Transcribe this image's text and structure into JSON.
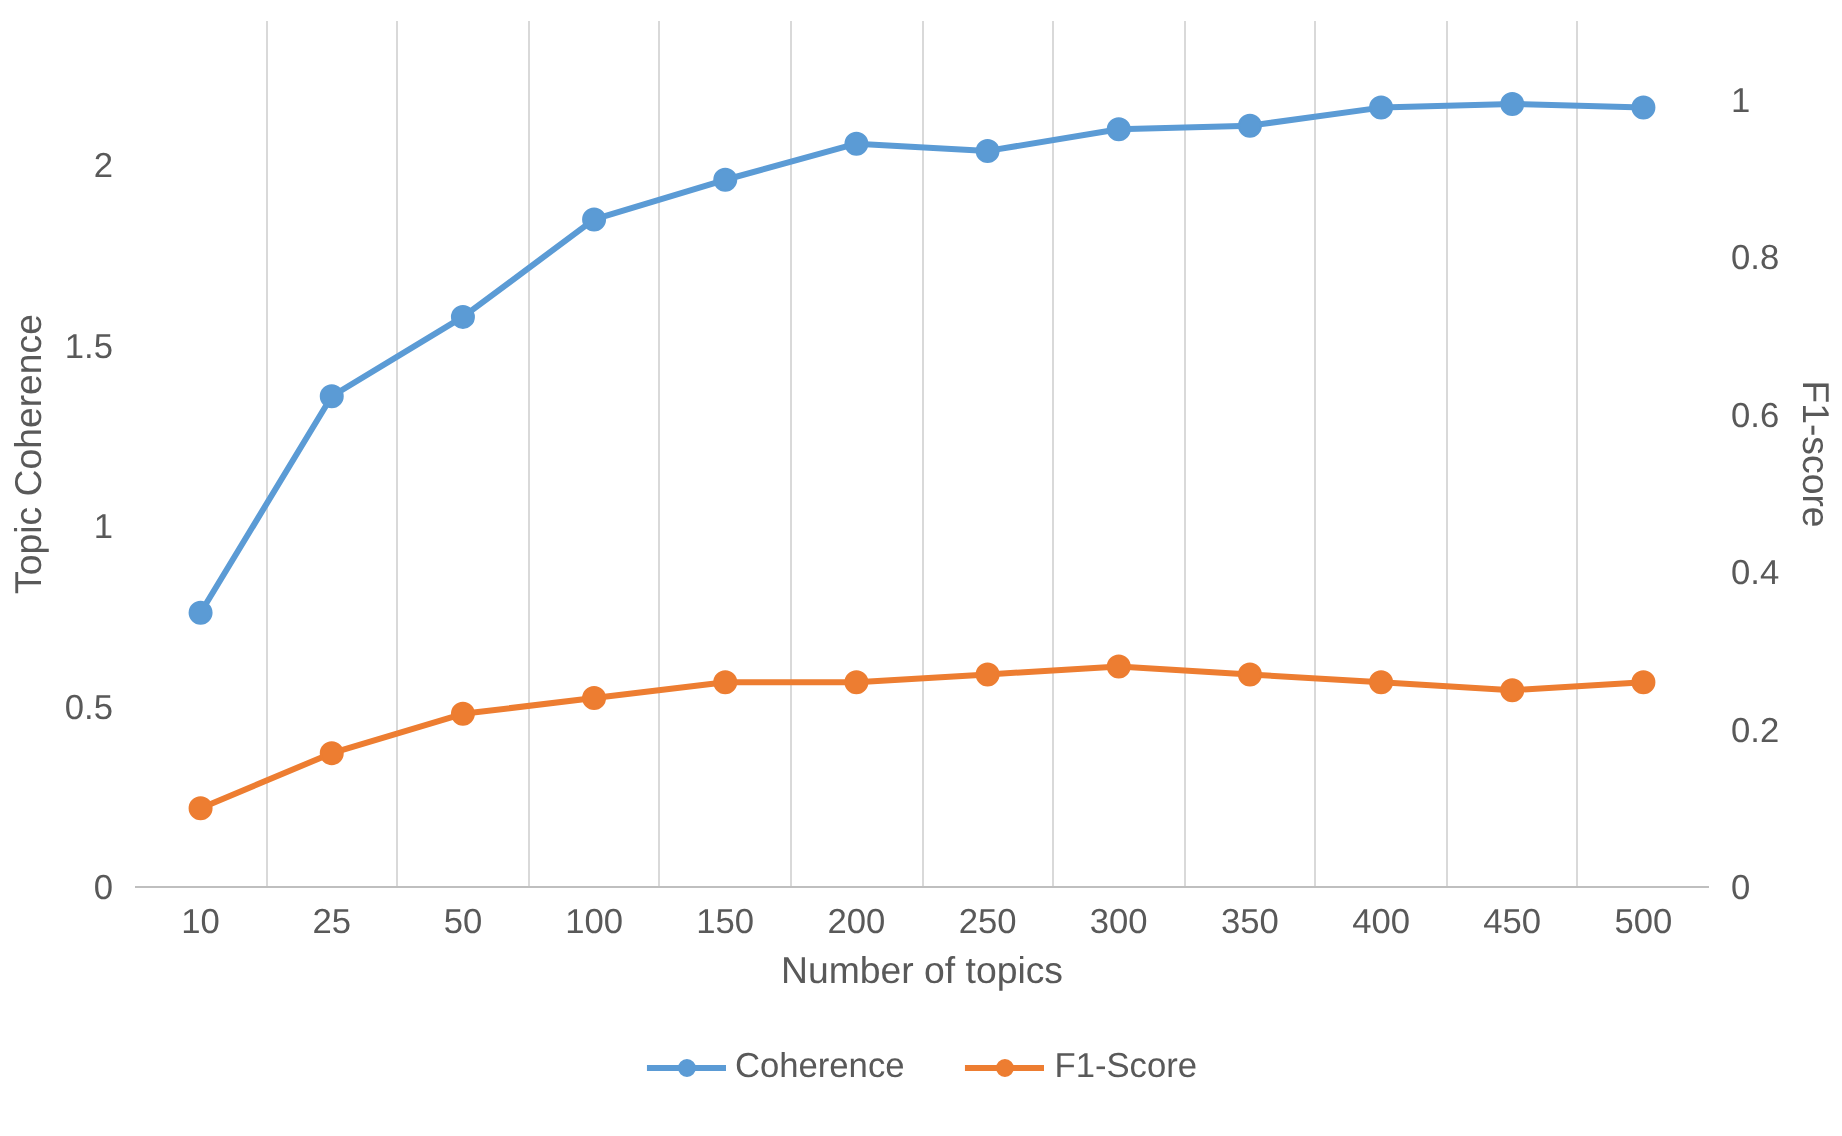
{
  "chart_data": {
    "type": "line",
    "xlabel": "Number of topics",
    "ylabel": "Topic Coherence",
    "y2label": "F1-score",
    "categories": [
      "10",
      "25",
      "50",
      "100",
      "150",
      "200",
      "250",
      "300",
      "350",
      "400",
      "450",
      "500"
    ],
    "series": [
      {
        "name": "Coherence",
        "color": "#5b9bd5",
        "values": [
          0.76,
          1.36,
          1.58,
          1.85,
          1.96,
          2.06,
          2.04,
          2.1,
          2.11,
          2.16,
          2.17,
          2.16
        ]
      },
      {
        "name": "F1-Score",
        "color": "#ed7d31",
        "axis": "y2",
        "values": [
          0.1,
          0.17,
          0.22,
          0.24,
          0.26,
          0.26,
          0.27,
          0.28,
          0.27,
          0.26,
          0.25,
          0.26
        ]
      }
    ],
    "ylim": [
      0,
      2.4
    ],
    "yticks": [
      0,
      0.5,
      1,
      1.5,
      2
    ],
    "y2lim": [
      0,
      1.1
    ],
    "y2ticks": [
      0,
      0.2,
      0.4,
      0.6,
      0.8,
      1
    ],
    "grid": "x",
    "legend": "bottom",
    "marker": "circle",
    "line_style": "solid"
  }
}
